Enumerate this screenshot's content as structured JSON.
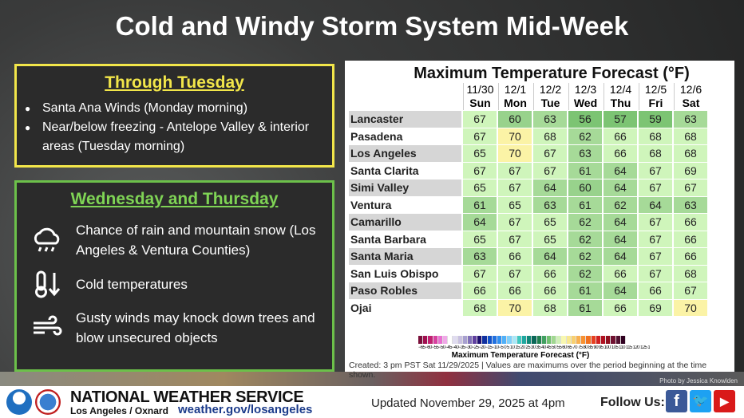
{
  "title": "Cold and Windy Storm System Mid-Week",
  "through_tuesday": {
    "heading": "Through Tuesday",
    "bullets": [
      "Santa Ana Winds (Monday morning)",
      "Near/below freezing - Antelope Valley & interior areas (Tuesday morning)"
    ]
  },
  "wed_thu": {
    "heading": "Wednesday and Thursday",
    "items": [
      {
        "icon": "rain-cloud-icon",
        "text": "Chance of rain and mountain snow (Los Angeles & Ventura Counties)"
      },
      {
        "icon": "cold-thermometer-icon",
        "text": "Cold temperatures"
      },
      {
        "icon": "wind-icon",
        "text": "Gusty winds may knock down trees and blow unsecured objects"
      }
    ]
  },
  "forecast": {
    "title": "Maximum Temperature Forecast (°F)",
    "dates": [
      "11/30",
      "12/1",
      "12/2",
      "12/3",
      "12/4",
      "12/5",
      "12/6"
    ],
    "days": [
      "Sun",
      "Mon",
      "Tue",
      "Wed",
      "Thu",
      "Fri",
      "Sat"
    ],
    "rows": [
      {
        "city": "Lancaster",
        "temps": [
          67,
          60,
          63,
          56,
          57,
          59,
          63
        ]
      },
      {
        "city": "Pasadena",
        "temps": [
          67,
          70,
          68,
          62,
          66,
          68,
          68
        ]
      },
      {
        "city": "Los Angeles",
        "temps": [
          65,
          70,
          67,
          63,
          66,
          68,
          68
        ]
      },
      {
        "city": "Santa Clarita",
        "temps": [
          67,
          67,
          67,
          61,
          64,
          67,
          69
        ]
      },
      {
        "city": "Simi Valley",
        "temps": [
          65,
          67,
          64,
          60,
          64,
          67,
          67
        ]
      },
      {
        "city": "Ventura",
        "temps": [
          61,
          65,
          63,
          61,
          62,
          64,
          63
        ]
      },
      {
        "city": "Camarillo",
        "temps": [
          64,
          67,
          65,
          62,
          64,
          67,
          66
        ]
      },
      {
        "city": "Santa Barbara",
        "temps": [
          65,
          67,
          65,
          62,
          64,
          67,
          66
        ]
      },
      {
        "city": "Santa Maria",
        "temps": [
          63,
          66,
          64,
          62,
          64,
          67,
          66
        ]
      },
      {
        "city": "San Luis Obispo",
        "temps": [
          67,
          67,
          66,
          62,
          66,
          67,
          68
        ]
      },
      {
        "city": "Paso Robles",
        "temps": [
          66,
          66,
          66,
          61,
          64,
          66,
          67
        ]
      },
      {
        "city": "Ojai",
        "temps": [
          68,
          70,
          68,
          61,
          66,
          69,
          70
        ]
      }
    ],
    "legend_ticks": "−65−60−55−50−45−40−35−30−25−20−15−10−5 0 5 10 15 20 25 30 35 40 45 50 55 60 65 70 75 80 85 90 95 100 105 110 115 120 125 130 135 140",
    "legend_title": "Maximum Temperature Forecast (°F)",
    "created": "Created: 3 pm PST Sat 11/29/2025  |  Values are maximums over the period beginning at the time shown."
  },
  "photo_credit": "Photo by Jessica Knowlden",
  "footer": {
    "org": "NATIONAL WEATHER SERVICE",
    "office": "Los Angeles / Oxnard",
    "url": "weather.gov/losangeles",
    "updated": "Updated November 29, 2025 at 4pm",
    "follow": "Follow Us:",
    "logos": [
      "NOAA",
      "NWS"
    ]
  }
}
